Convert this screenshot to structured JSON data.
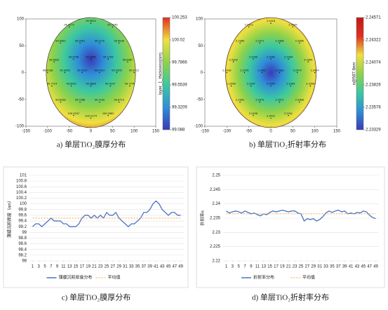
{
  "chart_data": [
    {
      "type": "heatmap",
      "caption": "a) 单层TiO₂膜厚分布",
      "colormap": [
        "#3a3ab8",
        "#2f8fd8",
        "#3cc8a0",
        "#8ed24a",
        "#f0e040",
        "#e03020"
      ],
      "x": [
        -50,
        0,
        50,
        -70,
        -25,
        20,
        65,
        -85,
        -40,
        0,
        40,
        85,
        -100,
        -60,
        -20,
        20,
        60,
        100,
        -90,
        -45,
        0,
        45,
        90,
        -70,
        -25,
        20,
        65,
        -40,
        0,
        40
      ],
      "y": [
        85,
        92,
        85,
        55,
        55,
        55,
        55,
        20,
        25,
        25,
        25,
        20,
        0,
        0,
        0,
        0,
        0,
        0,
        -25,
        -25,
        -25,
        -25,
        -25,
        -55,
        -55,
        -55,
        -55,
        -80,
        -85,
        -80
      ],
      "values": [
        99.8172,
        99.9633,
        99.7245,
        99.5962,
        99.2661,
        99.1176,
        99.5036,
        99.5622,
        99.2758,
        99.1556,
        99.1703,
        99.5387,
        99.6038,
        99.3205,
        99.2114,
        99.2314,
        99.3205,
        99.6712,
        99.7714,
        99.5031,
        99.3868,
        99.4147,
        99.7745,
        99.8168,
        99.7286,
        99.7162,
        99.8713,
        100.0247,
        100.2174,
        100.0982
      ],
      "xlim": [
        -150,
        150
      ],
      "xticks": [
        -150,
        -100,
        -50,
        0,
        50,
        100,
        150
      ],
      "ylim": [
        -100,
        100
      ],
      "yticks": [
        -100,
        -50,
        0,
        50,
        100
      ],
      "colorbar": {
        "label": "layer_1_thickness(nm)",
        "lim": [
          99.088,
          100.253
        ],
        "ticks": [
          99.088,
          99.3209,
          99.5539,
          99.7866,
          100.02,
          100.253
        ]
      }
    },
    {
      "type": "heatmap",
      "caption": "b) 单层TiO₂折射率分布",
      "colormap": [
        "#3a3ab8",
        "#2f8fd8",
        "#3cc8a0",
        "#8ed24a",
        "#f0e040",
        "#e03020",
        "#c01818"
      ],
      "x": [
        -50,
        0,
        50,
        -70,
        -25,
        20,
        65,
        -85,
        -40,
        0,
        40,
        85,
        -100,
        -60,
        -20,
        20,
        60,
        100,
        -90,
        -45,
        0,
        45,
        90,
        -70,
        -25,
        20,
        65,
        -40,
        0,
        40
      ],
      "y": [
        85,
        92,
        85,
        55,
        55,
        55,
        55,
        20,
        25,
        25,
        25,
        20,
        0,
        0,
        0,
        0,
        0,
        0,
        -25,
        -25,
        -25,
        -25,
        -25,
        -55,
        -55,
        -55,
        -55,
        -80,
        -85,
        -80
      ],
      "values": [
        2.2412,
        2.2418,
        2.2409,
        2.2389,
        2.2371,
        2.2368,
        2.2385,
        2.2392,
        2.2366,
        2.2362,
        2.2364,
        2.2394,
        2.2416,
        2.2376,
        2.2361,
        2.2363,
        2.2374,
        2.2414,
        2.2398,
        2.2367,
        2.2364,
        2.2369,
        2.2396,
        2.2391,
        2.2372,
        2.2371,
        2.2388,
        2.2408,
        2.2421,
        2.2411
      ],
      "xlim": [
        -150,
        150
      ],
      "xticks": [
        -150,
        -100,
        -50,
        0,
        50,
        100,
        150
      ],
      "ylim": [
        -100,
        100
      ],
      "yticks": [
        -100,
        -50,
        0,
        50,
        100
      ],
      "colorbar": {
        "label": "n@587.6nm",
        "lim": [
          2.23329,
          2.24571
        ],
        "ticks": [
          2.23329,
          2.23578,
          2.23826,
          2.24074,
          2.24322,
          2.24571
        ]
      }
    },
    {
      "type": "line",
      "caption": "c) 单层TiO₂膜厚分布",
      "ylabel": "薄膜沉积厚度（nm）",
      "grid": true,
      "legend": "bottom",
      "x": [
        1,
        2,
        3,
        4,
        5,
        6,
        7,
        8,
        9,
        10,
        11,
        12,
        13,
        14,
        15,
        16,
        17,
        18,
        19,
        20,
        21,
        22,
        23,
        24,
        25,
        26,
        27,
        28,
        29,
        30,
        31,
        32,
        33,
        34,
        35,
        36,
        37,
        38,
        39,
        40,
        41,
        42,
        43,
        44,
        45,
        46,
        47,
        48,
        49
      ],
      "xlim": [
        0,
        50
      ],
      "xticks": [
        1,
        3,
        5,
        7,
        9,
        11,
        13,
        15,
        17,
        19,
        21,
        23,
        25,
        27,
        29,
        31,
        33,
        35,
        37,
        39,
        41,
        43,
        45,
        47,
        49
      ],
      "ylim": [
        98,
        101
      ],
      "yticks": [
        98,
        98.2,
        98.4,
        98.6,
        98.8,
        99,
        99.2,
        99.4,
        99.6,
        99.8,
        100,
        100.2,
        100.4,
        100.6,
        100.8,
        101
      ],
      "series": [
        {
          "name": "薄膜沉积厚度分布",
          "color": "#4a72c4",
          "values": [
            99.2,
            99.3,
            99.3,
            99.2,
            99.3,
            99.4,
            99.5,
            99.4,
            99.4,
            99.4,
            99.3,
            99.3,
            99.2,
            99.2,
            99.2,
            99.3,
            99.5,
            99.6,
            99.6,
            99.5,
            99.6,
            99.5,
            99.6,
            99.5,
            99.7,
            99.6,
            99.6,
            99.7,
            99.5,
            99.4,
            99.3,
            99.2,
            99.3,
            99.3,
            99.4,
            99.5,
            99.7,
            99.7,
            99.8,
            100.0,
            100.1,
            100.0,
            99.8,
            99.7,
            99.6,
            99.7,
            99.7,
            99.6,
            99.6
          ]
        },
        {
          "name": "平均值",
          "color": "#ed9a3c",
          "dash": true,
          "values": [
            99.5,
            99.5,
            99.5,
            99.5,
            99.5,
            99.5,
            99.5,
            99.5,
            99.5,
            99.5,
            99.5,
            99.5,
            99.5,
            99.5,
            99.5,
            99.5,
            99.5,
            99.5,
            99.5,
            99.5,
            99.5,
            99.5,
            99.5,
            99.5,
            99.5,
            99.5,
            99.5,
            99.5,
            99.5,
            99.5,
            99.5,
            99.5,
            99.5,
            99.5,
            99.5,
            99.5,
            99.5,
            99.5,
            99.5,
            99.5,
            99.5,
            99.5,
            99.5,
            99.5,
            99.5,
            99.5,
            99.5,
            99.5,
            99.5
          ]
        }
      ]
    },
    {
      "type": "line",
      "caption": "d) 单层TiO₂折射率分布",
      "ylabel": "折射率n",
      "grid": true,
      "legend": "bottom",
      "x": [
        1,
        2,
        3,
        4,
        5,
        6,
        7,
        8,
        9,
        10,
        11,
        12,
        13,
        14,
        15,
        16,
        17,
        18,
        19,
        20,
        21,
        22,
        23,
        24,
        25,
        26,
        27,
        28,
        29,
        30,
        31,
        32,
        33,
        34,
        35,
        36,
        37,
        38,
        39,
        40,
        41,
        42,
        43,
        44,
        45,
        46,
        47,
        48,
        49
      ],
      "xlim": [
        0,
        50
      ],
      "xticks": [
        1,
        3,
        5,
        7,
        9,
        11,
        13,
        15,
        17,
        19,
        21,
        23,
        25,
        27,
        29,
        31,
        33,
        35,
        37,
        39,
        41,
        43,
        45,
        47,
        49
      ],
      "ylim": [
        2.22,
        2.25
      ],
      "yticks": [
        2.22,
        2.225,
        2.23,
        2.235,
        2.24,
        2.245,
        2.25
      ],
      "series": [
        {
          "name": "折射率分布",
          "color": "#4a72c4",
          "values": [
            2.2375,
            2.2368,
            2.2372,
            2.2375,
            2.2372,
            2.2368,
            2.2375,
            2.237,
            2.2365,
            2.2368,
            2.2362,
            2.2358,
            2.2365,
            2.2362,
            2.237,
            2.2375,
            2.2372,
            2.2375,
            2.2378,
            2.2375,
            2.2372,
            2.2375,
            2.2375,
            2.2368,
            2.2365,
            2.234,
            2.2348,
            2.2345,
            2.2348,
            2.234,
            2.2345,
            2.2355,
            2.2368,
            2.2375,
            2.237,
            2.2375,
            2.2378,
            2.2372,
            2.2375,
            2.2365,
            2.2368,
            2.2365,
            2.237,
            2.2368,
            2.2375,
            2.2372,
            2.236,
            2.2352,
            2.2348
          ]
        },
        {
          "name": "平均值",
          "color": "#ed9a3c",
          "dash": true,
          "values": [
            2.2365,
            2.2365,
            2.2365,
            2.2365,
            2.2365,
            2.2365,
            2.2365,
            2.2365,
            2.2365,
            2.2365,
            2.2365,
            2.2365,
            2.2365,
            2.2365,
            2.2365,
            2.2365,
            2.2365,
            2.2365,
            2.2365,
            2.2365,
            2.2365,
            2.2365,
            2.2365,
            2.2365,
            2.2365,
            2.2365,
            2.2365,
            2.2365,
            2.2365,
            2.2365,
            2.2365,
            2.2365,
            2.2365,
            2.2365,
            2.2365,
            2.2365,
            2.2365,
            2.2365,
            2.2365,
            2.2365,
            2.2365,
            2.2365,
            2.2365,
            2.2365,
            2.2365,
            2.2365,
            2.2365,
            2.2365,
            2.2365
          ]
        }
      ]
    }
  ]
}
